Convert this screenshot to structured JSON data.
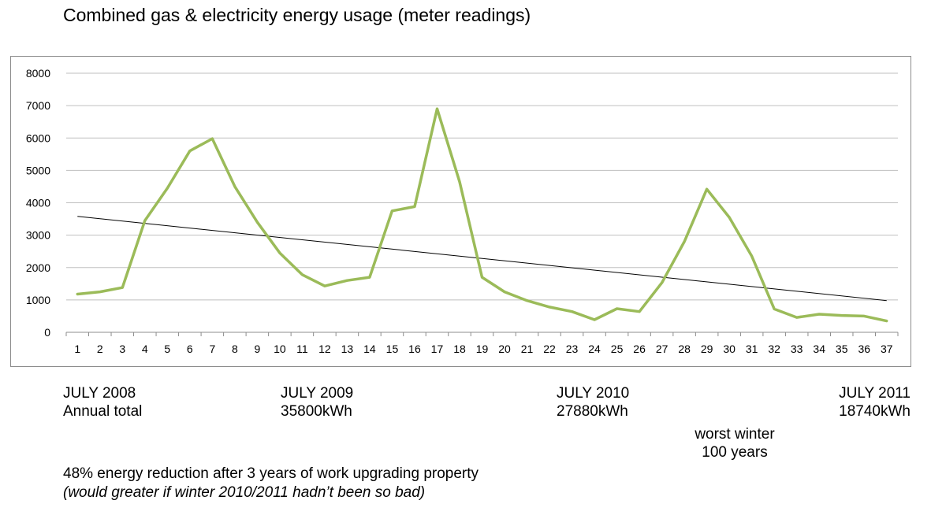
{
  "title": "Combined gas & electricity energy usage (meter readings)",
  "colors": {
    "series": "#9bbb59",
    "trend": "#000000",
    "grid": "#bfbfbf"
  },
  "chart_data": {
    "type": "line",
    "title": "Combined gas & electricity energy usage (meter readings)",
    "xlabel": "",
    "ylabel": "",
    "ylim": [
      0,
      8000
    ],
    "yticks": [
      0,
      1000,
      2000,
      3000,
      4000,
      5000,
      6000,
      7000,
      8000
    ],
    "grid": true,
    "legend": "none",
    "x": [
      1,
      2,
      3,
      4,
      5,
      6,
      7,
      8,
      9,
      10,
      11,
      12,
      13,
      14,
      15,
      16,
      17,
      18,
      19,
      20,
      21,
      22,
      23,
      24,
      25,
      26,
      27,
      28,
      29,
      30,
      31,
      32,
      33,
      34,
      35,
      36,
      37
    ],
    "series": [
      {
        "values": [
          1180,
          1250,
          1380,
          3450,
          4450,
          5600,
          5980,
          4500,
          3400,
          2450,
          1780,
          1430,
          1600,
          1700,
          3750,
          3880,
          6900,
          4650,
          1700,
          1250,
          980,
          780,
          640,
          390,
          730,
          640,
          1530,
          2800,
          4420,
          3550,
          2350,
          720,
          460,
          560,
          520,
          500,
          350
        ]
      },
      {
        "type": "trendline",
        "values_at_ends": [
          3580,
          980
        ]
      }
    ]
  },
  "annotations": {
    "col1": {
      "line1": "JULY 2008",
      "line2": "Annual total"
    },
    "col2": {
      "line1": "JULY 2009",
      "line2": "35800kWh"
    },
    "col3": {
      "line1": "JULY 2010",
      "line2": "27880kWh"
    },
    "col4": {
      "line1": "JULY 2011",
      "line2": "18740kWh"
    },
    "winter": {
      "line1": "worst winter",
      "line2": "100 years"
    }
  },
  "notes": {
    "summary": "48% energy reduction after 3 years of work upgrading property",
    "caveat": "(would greater if winter 2010/2011 hadn’t been so bad)"
  }
}
